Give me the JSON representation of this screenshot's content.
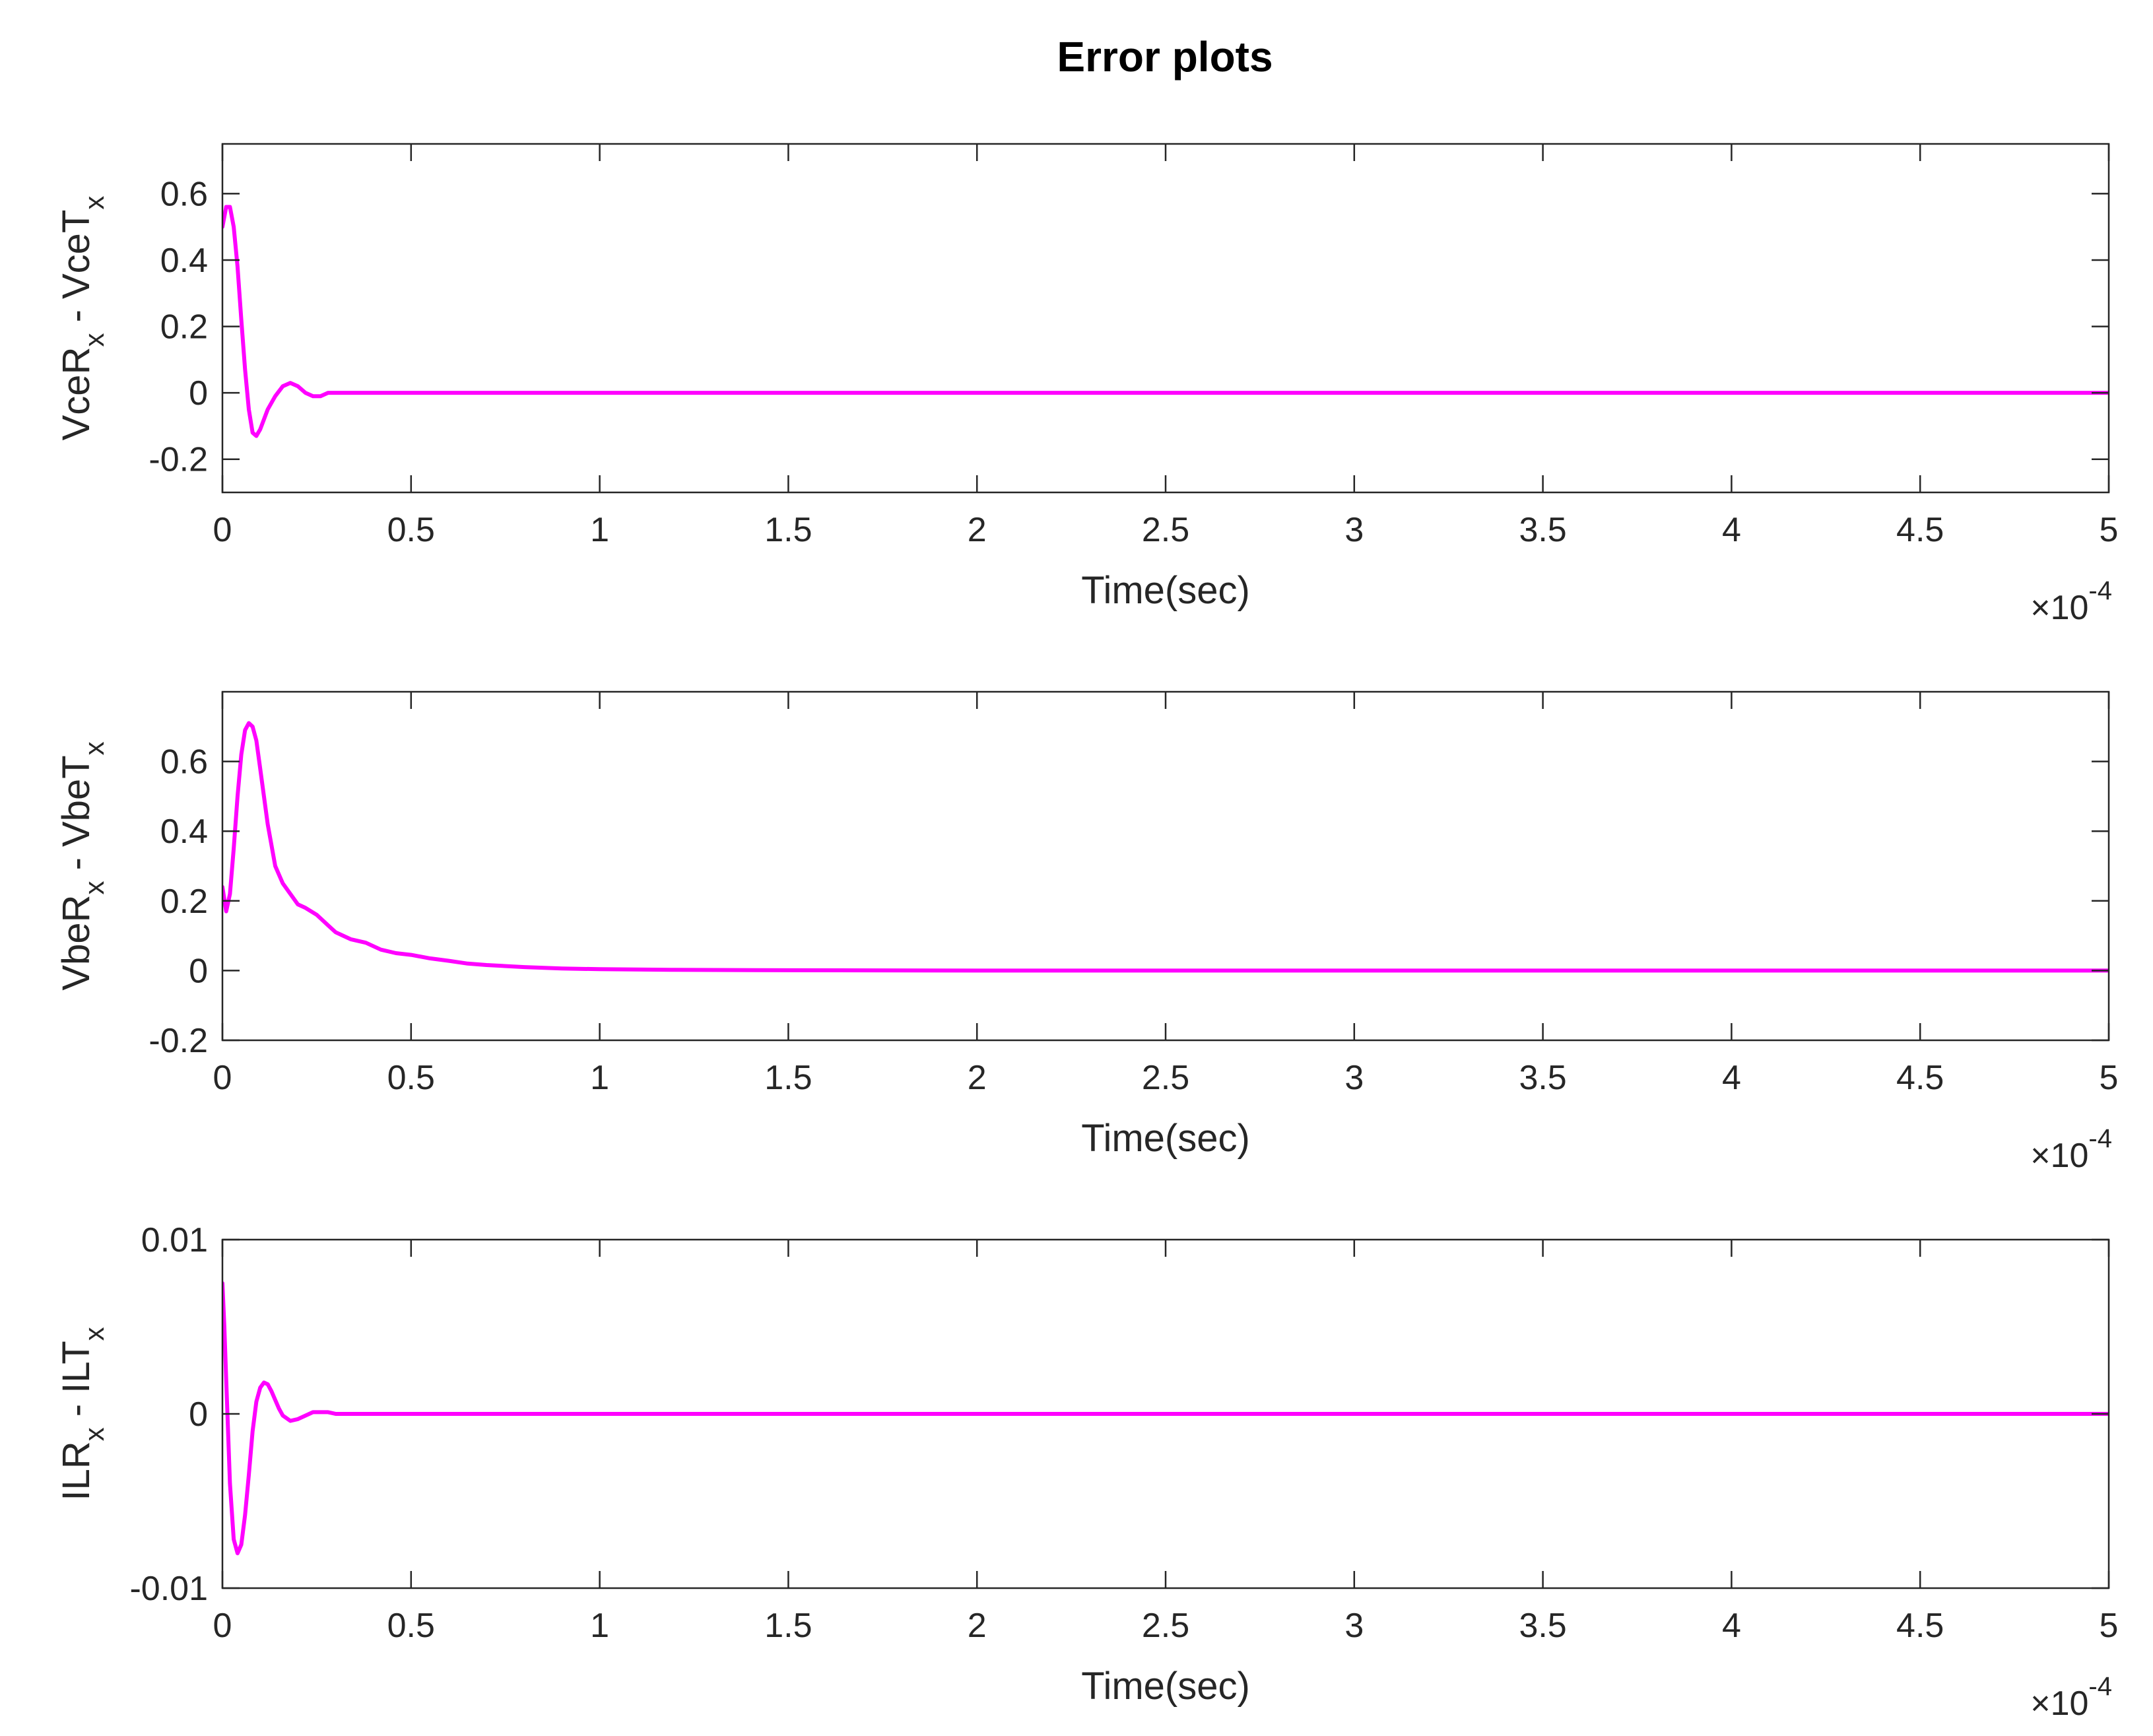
{
  "figure": {
    "title": "Error plots"
  },
  "chart_data": [
    {
      "type": "line",
      "xlabel": "Time(sec)",
      "ylabel": {
        "main": "VceR",
        "sub1": "x",
        "mid": " - VceT",
        "sub2": "x"
      },
      "x_multiplier": {
        "prefix": "×10",
        "exponent": "-4"
      },
      "xlim": [
        0,
        5
      ],
      "ylim": [
        -0.3,
        0.75
      ],
      "xticks": [
        0,
        0.5,
        1,
        1.5,
        2,
        2.5,
        3,
        3.5,
        4,
        4.5,
        5
      ],
      "xtick_labels": [
        "0",
        "0.5",
        "1",
        "1.5",
        "2",
        "2.5",
        "3",
        "3.5",
        "4",
        "4.5",
        "5"
      ],
      "yticks": [
        -0.2,
        0,
        0.2,
        0.4,
        0.6
      ],
      "ytick_labels": [
        "-0.2",
        "0",
        "0.2",
        "0.4",
        "0.6"
      ],
      "series": [
        {
          "color": "#ff00ff",
          "x": [
            0,
            0.01,
            0.02,
            0.03,
            0.04,
            0.05,
            0.06,
            0.07,
            0.08,
            0.09,
            0.1,
            0.11,
            0.12,
            0.14,
            0.16,
            0.18,
            0.2,
            0.22,
            0.24,
            0.26,
            0.28,
            0.32,
            0.36,
            0.4,
            0.5,
            1,
            2,
            3,
            4,
            5
          ],
          "y": [
            0.5,
            0.56,
            0.56,
            0.5,
            0.38,
            0.22,
            0.07,
            -0.05,
            -0.12,
            -0.13,
            -0.11,
            -0.08,
            -0.05,
            -0.01,
            0.02,
            0.03,
            0.02,
            0.0,
            -0.01,
            -0.01,
            0.0,
            0.0,
            0.0,
            0.0,
            0,
            0,
            0,
            0,
            0,
            0
          ]
        }
      ]
    },
    {
      "type": "line",
      "xlabel": "Time(sec)",
      "ylabel": {
        "main": "VbeR",
        "sub1": "x",
        "mid": " - VbeT",
        "sub2": "x"
      },
      "x_multiplier": {
        "prefix": "×10",
        "exponent": "-4"
      },
      "xlim": [
        0,
        5
      ],
      "ylim": [
        -0.2,
        0.8
      ],
      "xticks": [
        0,
        0.5,
        1,
        1.5,
        2,
        2.5,
        3,
        3.5,
        4,
        4.5,
        5
      ],
      "xtick_labels": [
        "0",
        "0.5",
        "1",
        "1.5",
        "2",
        "2.5",
        "3",
        "3.5",
        "4",
        "4.5",
        "5"
      ],
      "yticks": [
        -0.2,
        0,
        0.2,
        0.4,
        0.6
      ],
      "ytick_labels": [
        "-0.2",
        "0",
        "0.2",
        "0.4",
        "0.6"
      ],
      "series": [
        {
          "color": "#ff00ff",
          "x": [
            0,
            0.01,
            0.02,
            0.03,
            0.04,
            0.05,
            0.06,
            0.07,
            0.08,
            0.09,
            0.1,
            0.12,
            0.14,
            0.16,
            0.18,
            0.2,
            0.22,
            0.25,
            0.28,
            0.3,
            0.32,
            0.34,
            0.38,
            0.42,
            0.46,
            0.5,
            0.55,
            0.6,
            0.65,
            0.7,
            0.8,
            0.9,
            1,
            1.2,
            1.5,
            2,
            3,
            4,
            5
          ],
          "y": [
            0.24,
            0.17,
            0.22,
            0.35,
            0.5,
            0.62,
            0.69,
            0.71,
            0.7,
            0.66,
            0.58,
            0.42,
            0.3,
            0.25,
            0.22,
            0.19,
            0.18,
            0.16,
            0.13,
            0.11,
            0.1,
            0.09,
            0.08,
            0.06,
            0.05,
            0.045,
            0.035,
            0.028,
            0.02,
            0.016,
            0.01,
            0.006,
            0.004,
            0.002,
            0.001,
            0,
            0,
            0,
            0
          ]
        }
      ]
    },
    {
      "type": "line",
      "xlabel": "Time(sec)",
      "ylabel": {
        "main": "ILR",
        "sub1": "x",
        "mid": " - ILT",
        "sub2": "x"
      },
      "x_multiplier": {
        "prefix": "×10",
        "exponent": "-4"
      },
      "xlim": [
        0,
        5
      ],
      "ylim": [
        -0.01,
        0.01
      ],
      "xticks": [
        0,
        0.5,
        1,
        1.5,
        2,
        2.5,
        3,
        3.5,
        4,
        4.5,
        5
      ],
      "xtick_labels": [
        "0",
        "0.5",
        "1",
        "1.5",
        "2",
        "2.5",
        "3",
        "3.5",
        "4",
        "4.5",
        "5"
      ],
      "yticks": [
        -0.01,
        0,
        0.01
      ],
      "ytick_labels": [
        "-0.01",
        "0",
        "0.01"
      ],
      "series": [
        {
          "color": "#ff00ff",
          "x": [
            0,
            0.005,
            0.01,
            0.02,
            0.03,
            0.04,
            0.05,
            0.06,
            0.07,
            0.08,
            0.09,
            0.1,
            0.11,
            0.12,
            0.13,
            0.14,
            0.15,
            0.16,
            0.18,
            0.2,
            0.22,
            0.24,
            0.26,
            0.28,
            0.3,
            0.32,
            0.35,
            0.4,
            0.5,
            1,
            2,
            3,
            4,
            5
          ],
          "y": [
            0.0075,
            0.005,
            0.002,
            -0.004,
            -0.0072,
            -0.008,
            -0.0075,
            -0.0058,
            -0.0035,
            -0.001,
            0.0007,
            0.0015,
            0.0018,
            0.0017,
            0.0013,
            0.0008,
            0.0003,
            -0.0001,
            -0.0004,
            -0.0003,
            -0.0001,
            0.0001,
            0.0001,
            0.0001,
            0.0,
            0.0,
            0.0,
            0,
            0,
            0,
            0,
            0,
            0,
            0
          ]
        }
      ]
    }
  ]
}
